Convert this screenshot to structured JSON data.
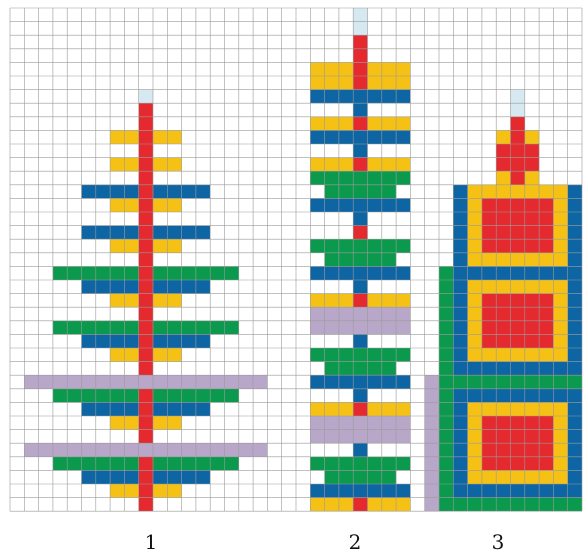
{
  "colors": {
    "red": "#e42a2e",
    "yellow": "#f5c114",
    "blue": "#0e65a4",
    "green": "#0b9a4d",
    "lilac": "#b8a7c9",
    "cap": "#d6e8f0",
    "grid": "#9a9a9a",
    "bg": "#ffffff"
  },
  "labels": {
    "fig1": "1",
    "fig2": "2",
    "fig3": "3"
  },
  "figures": [
    {
      "id": "1",
      "center_col": 9,
      "rows": [
        [
          6,
          [
            [
              1,
              "cap"
            ]
          ]
        ],
        [
          7,
          [
            [
              1,
              "red"
            ]
          ]
        ],
        [
          8,
          [
            [
              1,
              "red"
            ]
          ]
        ],
        [
          9,
          [
            [
              5,
              "yellow"
            ],
            [
              1,
              "red"
            ]
          ]
        ],
        [
          10,
          [
            [
              1,
              "red"
            ]
          ]
        ],
        [
          11,
          [
            [
              5,
              "yellow"
            ],
            [
              1,
              "red"
            ]
          ]
        ],
        [
          12,
          [
            [
              1,
              "red"
            ]
          ]
        ],
        [
          13,
          [
            [
              9,
              "blue"
            ],
            [
              1,
              "red"
            ]
          ]
        ],
        [
          14,
          [
            [
              5,
              "yellow"
            ],
            [
              1,
              "red"
            ]
          ]
        ],
        [
          15,
          [
            [
              1,
              "red"
            ]
          ]
        ],
        [
          16,
          [
            [
              9,
              "blue"
            ],
            [
              1,
              "red"
            ]
          ]
        ],
        [
          17,
          [
            [
              5,
              "yellow"
            ],
            [
              1,
              "red"
            ]
          ]
        ],
        [
          18,
          [
            [
              1,
              "red"
            ]
          ]
        ],
        [
          19,
          [
            [
              13,
              "green"
            ],
            [
              1,
              "red"
            ]
          ]
        ],
        [
          20,
          [
            [
              9,
              "blue"
            ],
            [
              1,
              "red"
            ]
          ]
        ],
        [
          21,
          [
            [
              5,
              "yellow"
            ],
            [
              1,
              "red"
            ]
          ]
        ],
        [
          22,
          [
            [
              1,
              "red"
            ]
          ]
        ],
        [
          23,
          [
            [
              13,
              "green"
            ],
            [
              1,
              "red"
            ]
          ]
        ],
        [
          24,
          [
            [
              9,
              "blue"
            ],
            [
              1,
              "red"
            ]
          ]
        ],
        [
          25,
          [
            [
              5,
              "yellow"
            ],
            [
              1,
              "red"
            ]
          ]
        ],
        [
          26,
          [
            [
              1,
              "red"
            ]
          ]
        ],
        [
          27,
          [
            [
              17,
              "lilac"
            ]
          ]
        ],
        [
          28,
          [
            [
              13,
              "green"
            ],
            [
              1,
              "red"
            ]
          ]
        ],
        [
          29,
          [
            [
              9,
              "blue"
            ],
            [
              1,
              "red"
            ]
          ]
        ],
        [
          30,
          [
            [
              5,
              "yellow"
            ],
            [
              1,
              "red"
            ]
          ]
        ],
        [
          31,
          [
            [
              1,
              "red"
            ]
          ]
        ],
        [
          32,
          [
            [
              17,
              "lilac"
            ]
          ]
        ],
        [
          33,
          [
            [
              13,
              "green"
            ],
            [
              1,
              "red"
            ]
          ]
        ],
        [
          34,
          [
            [
              9,
              "blue"
            ],
            [
              1,
              "red"
            ]
          ]
        ],
        [
          35,
          [
            [
              5,
              "yellow"
            ],
            [
              1,
              "red"
            ]
          ]
        ],
        [
          36,
          [
            [
              1,
              "red"
            ]
          ]
        ]
      ]
    },
    {
      "id": "2",
      "center_col": 24,
      "rows": [
        [
          0,
          [
            [
              1,
              "cap"
            ]
          ]
        ],
        [
          1,
          [
            [
              1,
              "cap"
            ]
          ]
        ],
        [
          2,
          [
            [
              1,
              "red"
            ]
          ]
        ],
        [
          3,
          [
            [
              1,
              "red"
            ]
          ]
        ],
        [
          4,
          [
            [
              7,
              "yellow"
            ],
            [
              1,
              "red"
            ]
          ]
        ],
        [
          5,
          [
            [
              7,
              "yellow"
            ],
            [
              1,
              "red"
            ]
          ]
        ],
        [
          6,
          [
            [
              7,
              "blue"
            ],
            [
              1,
              "blue"
            ]
          ]
        ],
        [
          7,
          [
            [
              1,
              "blue"
            ]
          ]
        ],
        [
          8,
          [
            [
              7,
              "yellow"
            ],
            [
              1,
              "red"
            ]
          ]
        ],
        [
          9,
          [
            [
              7,
              "blue"
            ],
            [
              1,
              "blue"
            ]
          ]
        ],
        [
          10,
          [
            [
              1,
              "blue"
            ]
          ]
        ],
        [
          11,
          [
            [
              7,
              "yellow"
            ],
            [
              1,
              "red"
            ]
          ]
        ],
        [
          12,
          [
            [
              7,
              "green"
            ],
            [
              1,
              "green"
            ]
          ]
        ],
        [
          13,
          [
            [
              5,
              "green"
            ],
            [
              1,
              "green"
            ]
          ]
        ],
        [
          14,
          [
            [
              7,
              "blue"
            ],
            [
              1,
              "blue"
            ]
          ]
        ],
        [
          15,
          [
            [
              1,
              "blue"
            ]
          ]
        ],
        [
          16,
          [
            [
              1,
              "red"
            ]
          ]
        ],
        [
          17,
          [
            [
              7,
              "green"
            ],
            [
              1,
              "green"
            ]
          ]
        ],
        [
          18,
          [
            [
              5,
              "green"
            ],
            [
              1,
              "green"
            ]
          ]
        ],
        [
          19,
          [
            [
              7,
              "blue"
            ],
            [
              1,
              "blue"
            ]
          ]
        ],
        [
          20,
          [
            [
              1,
              "blue"
            ]
          ]
        ],
        [
          21,
          [
            [
              7,
              "yellow"
            ],
            [
              1,
              "red"
            ]
          ]
        ],
        [
          22,
          [
            [
              7,
              "lilac"
            ]
          ]
        ],
        [
          23,
          [
            [
              7,
              "lilac"
            ]
          ]
        ],
        [
          24,
          [
            [
              1,
              "blue"
            ]
          ]
        ],
        [
          25,
          [
            [
              7,
              "green"
            ],
            [
              1,
              "green"
            ]
          ]
        ],
        [
          26,
          [
            [
              5,
              "green"
            ],
            [
              1,
              "green"
            ]
          ]
        ],
        [
          27,
          [
            [
              7,
              "blue"
            ],
            [
              1,
              "blue"
            ]
          ]
        ],
        [
          28,
          [
            [
              1,
              "blue"
            ]
          ]
        ],
        [
          29,
          [
            [
              7,
              "yellow"
            ],
            [
              1,
              "red"
            ]
          ]
        ],
        [
          30,
          [
            [
              7,
              "lilac"
            ]
          ]
        ],
        [
          31,
          [
            [
              7,
              "lilac"
            ]
          ]
        ],
        [
          32,
          [
            [
              1,
              "blue"
            ]
          ]
        ],
        [
          33,
          [
            [
              7,
              "green"
            ],
            [
              1,
              "green"
            ]
          ]
        ],
        [
          34,
          [
            [
              5,
              "green"
            ],
            [
              1,
              "green"
            ]
          ]
        ],
        [
          35,
          [
            [
              7,
              "blue"
            ],
            [
              1,
              "blue"
            ]
          ]
        ],
        [
          36,
          [
            [
              7,
              "yellow"
            ],
            [
              1,
              "red"
            ]
          ]
        ]
      ]
    }
  ],
  "figure3": {
    "id": "3",
    "center_col": 35,
    "cap_rows": [
      6,
      7
    ],
    "top_rows": [
      [
        8,
        1
      ],
      [
        9,
        3
      ],
      [
        10,
        3
      ],
      [
        11,
        3
      ],
      [
        12,
        3
      ]
    ],
    "box_layers": [
      {
        "rows": [
          13,
          19
        ],
        "half": 3,
        "order": [
          "blue",
          "yellow",
          "red",
          "red"
        ]
      },
      {
        "rows": [
          19,
          27
        ],
        "half": 4,
        "order": [
          "green",
          "blue",
          "yellow",
          "red",
          "red"
        ]
      },
      {
        "rows": [
          27,
          37
        ],
        "half": 5,
        "order": [
          "lilac",
          "green",
          "blue",
          "yellow",
          "red",
          "red"
        ]
      }
    ]
  }
}
